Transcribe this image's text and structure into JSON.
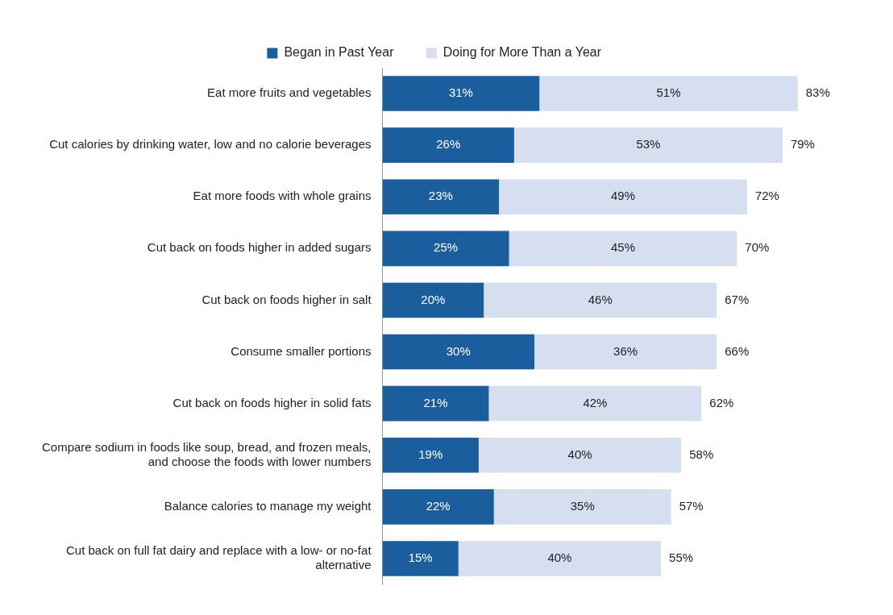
{
  "chart_data": {
    "type": "bar",
    "orientation": "horizontal",
    "stacked": true,
    "categories": [
      "Eat more fruits and vegetables",
      "Cut calories by drinking water, low and no calorie beverages",
      "Eat more foods with whole grains",
      "Cut back on foods higher in added sugars",
      "Cut back on foods higher in salt",
      "Consume smaller portions",
      "Cut back on foods higher in solid fats",
      "Compare sodium in foods like soup, bread, and frozen meals, and choose the foods with lower numbers",
      "Balance calories to manage my weight",
      "Cut back on full fat dairy and replace with a low- or no-fat alternative"
    ],
    "series": [
      {
        "name": "Began in Past Year",
        "color": "#1b5e9e",
        "values": [
          31,
          26,
          23,
          25,
          20,
          30,
          21,
          19,
          22,
          15
        ],
        "value_labels": [
          "31%",
          "26%",
          "23%",
          "25%",
          "20%",
          "30%",
          "21%",
          "19%",
          "22%",
          "15%"
        ]
      },
      {
        "name": "Doing for More Than a Year",
        "color": "#d6dff0",
        "values": [
          51,
          53,
          49,
          45,
          46,
          36,
          42,
          40,
          35,
          40
        ],
        "value_labels": [
          "51%",
          "53%",
          "49%",
          "45%",
          "46%",
          "36%",
          "42%",
          "40%",
          "35%",
          "40%"
        ]
      }
    ],
    "totals": [
      "83%",
      "79%",
      "72%",
      "70%",
      "67%",
      "66%",
      "62%",
      "58%",
      "57%",
      "55%"
    ],
    "tick_labels": "y",
    "legend": "top"
  }
}
